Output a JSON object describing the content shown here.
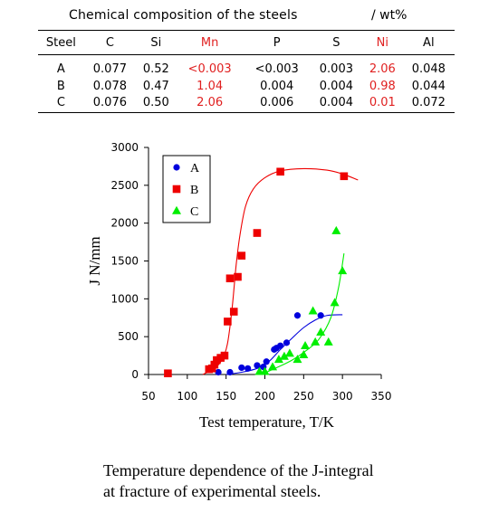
{
  "table": {
    "title": "Chemical composition of the steels",
    "unit": "/ wt%",
    "headers": [
      "Steel",
      "C",
      "Si",
      "Mn",
      "P",
      "S",
      "Ni",
      "Al"
    ],
    "rows": [
      [
        "A",
        "0.077",
        "0.52",
        "<0.003",
        "<0.003",
        "0.003",
        "2.06",
        "0.048"
      ],
      [
        "B",
        "0.078",
        "0.47",
        "1.04",
        "0.004",
        "0.004",
        "0.98",
        "0.044"
      ],
      [
        "C",
        "0.076",
        "0.50",
        "2.06",
        "0.006",
        "0.004",
        "0.01",
        "0.072"
      ]
    ],
    "highlight_color": "#e02020",
    "highlight_columns": [
      "Mn",
      "Ni"
    ]
  },
  "chart_data": {
    "type": "scatter",
    "xlabel": "Test temperature, T/K",
    "ylabel": "J N/mm",
    "xlim": [
      50,
      350
    ],
    "ylim": [
      0,
      3000
    ],
    "xticks": [
      50,
      100,
      150,
      200,
      250,
      300,
      350
    ],
    "yticks": [
      0,
      500,
      1000,
      1500,
      2000,
      2500,
      3000
    ],
    "legend_position": "top-left",
    "series": [
      {
        "name": "A",
        "color": "#0000dd",
        "marker": "circle",
        "points": [
          [
            140,
            30
          ],
          [
            155,
            30
          ],
          [
            170,
            90
          ],
          [
            178,
            80
          ],
          [
            190,
            120
          ],
          [
            198,
            100
          ],
          [
            202,
            170
          ],
          [
            212,
            330
          ],
          [
            215,
            350
          ],
          [
            220,
            380
          ],
          [
            228,
            420
          ],
          [
            242,
            780
          ],
          [
            272,
            780
          ]
        ],
        "curve": [
          [
            150,
            0
          ],
          [
            170,
            30
          ],
          [
            190,
            80
          ],
          [
            205,
            170
          ],
          [
            220,
            330
          ],
          [
            235,
            480
          ],
          [
            250,
            620
          ],
          [
            265,
            720
          ],
          [
            280,
            780
          ],
          [
            300,
            790
          ]
        ]
      },
      {
        "name": "B",
        "color": "#ee0000",
        "marker": "square",
        "points": [
          [
            75,
            15
          ],
          [
            128,
            70
          ],
          [
            132,
            80
          ],
          [
            135,
            130
          ],
          [
            138,
            190
          ],
          [
            143,
            220
          ],
          [
            148,
            250
          ],
          [
            152,
            700
          ],
          [
            155,
            1270
          ],
          [
            160,
            830
          ],
          [
            165,
            1290
          ],
          [
            170,
            1570
          ],
          [
            190,
            1870
          ],
          [
            220,
            2680
          ],
          [
            302,
            2620
          ]
        ],
        "curve": [
          [
            120,
            0
          ],
          [
            135,
            80
          ],
          [
            145,
            200
          ],
          [
            152,
            420
          ],
          [
            158,
            900
          ],
          [
            163,
            1450
          ],
          [
            168,
            1850
          ],
          [
            175,
            2220
          ],
          [
            185,
            2450
          ],
          [
            200,
            2600
          ],
          [
            220,
            2690
          ],
          [
            250,
            2720
          ],
          [
            280,
            2700
          ],
          [
            300,
            2650
          ],
          [
            320,
            2570
          ]
        ]
      },
      {
        "name": "C",
        "color": "#00ee00",
        "marker": "triangle",
        "points": [
          [
            193,
            40
          ],
          [
            200,
            40
          ],
          [
            210,
            100
          ],
          [
            218,
            200
          ],
          [
            225,
            240
          ],
          [
            232,
            280
          ],
          [
            242,
            200
          ],
          [
            250,
            260
          ],
          [
            252,
            380
          ],
          [
            262,
            840
          ],
          [
            265,
            430
          ],
          [
            272,
            560
          ],
          [
            282,
            430
          ],
          [
            290,
            950
          ],
          [
            292,
            1900
          ],
          [
            300,
            1370
          ]
        ],
        "curve": [
          [
            195,
            0
          ],
          [
            215,
            90
          ],
          [
            235,
            190
          ],
          [
            255,
            330
          ],
          [
            270,
            470
          ],
          [
            285,
            750
          ],
          [
            295,
            1150
          ],
          [
            302,
            1600
          ]
        ]
      }
    ]
  },
  "caption": {
    "line1": "Temperature dependence of the J-integral",
    "line2": "at fracture of experimental steels."
  }
}
